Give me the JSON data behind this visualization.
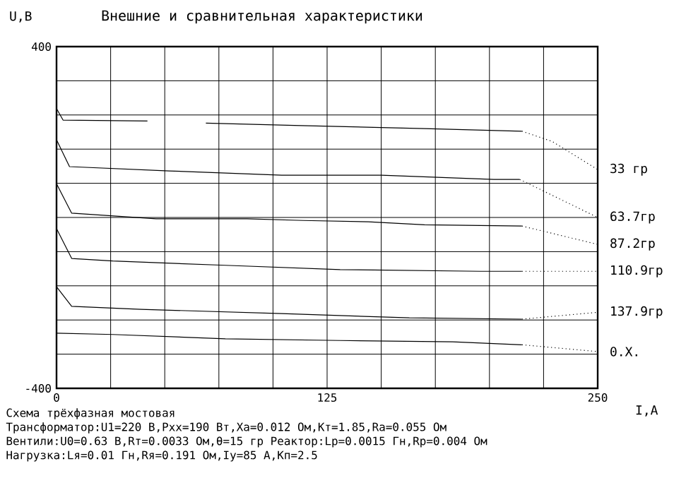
{
  "chart_data": {
    "type": "line",
    "title": "Внешние и сравнительная характеристики",
    "xlabel": "I,А",
    "ylabel": "U,В",
    "xlim": [
      0,
      250
    ],
    "ylim": [
      -400,
      400
    ],
    "xticks": [
      0,
      {
        "value": 25,
        "label": null
      },
      {
        "value": 50,
        "label": null
      },
      {
        "value": 75,
        "label": null
      },
      {
        "value": 100,
        "label": null
      },
      125,
      {
        "value": 150,
        "label": null
      },
      {
        "value": 175,
        "label": null
      },
      {
        "value": 200,
        "label": null
      },
      {
        "value": 225,
        "label": null
      },
      250
    ],
    "yticks": [
      400,
      {
        "value": 320,
        "label": null
      },
      {
        "value": 240,
        "label": null
      },
      {
        "value": 160,
        "label": null
      },
      {
        "value": 80,
        "label": null
      },
      {
        "value": 0,
        "label": null
      },
      {
        "value": -80,
        "label": null
      },
      {
        "value": -160,
        "label": null
      },
      {
        "value": -240,
        "label": null
      },
      {
        "value": -320,
        "label": null
      },
      -400
    ],
    "grid": true,
    "series": [
      {
        "color": "#000000",
        "line_style": "solid",
        "x": [
          0,
          3,
          42,
          55,
          69,
          113,
          170,
          215
        ],
        "values": [
          255,
          228,
          226,
          null,
          221,
          215,
          208,
          202
        ]
      },
      {
        "name": "33  гр",
        "color": "#000000",
        "line_style": "dotted",
        "x": [
          215,
          229,
          250
        ],
        "values": [
          202,
          178,
          112
        ]
      },
      {
        "color": "#000000",
        "line_style": "solid",
        "x": [
          0,
          6,
          52,
          104,
          150,
          202,
          214
        ],
        "values": [
          182,
          119,
          109,
          99,
          99,
          89,
          89
        ]
      },
      {
        "name": "63.7гр",
        "color": "#000000",
        "line_style": "dotted",
        "x": [
          214,
          250
        ],
        "values": [
          89,
          0
        ]
      },
      {
        "color": "#000000",
        "line_style": "solid",
        "x": [
          0,
          7,
          46,
          88,
          114,
          144,
          170,
          215
        ],
        "values": [
          79,
          10,
          -3,
          -3,
          -7,
          -10,
          -17,
          -20
        ]
      },
      {
        "name": "87.2гр",
        "color": "#000000",
        "line_style": "dotted",
        "x": [
          215,
          250
        ],
        "values": [
          -20,
          -63
        ]
      },
      {
        "color": "#000000",
        "line_style": "solid",
        "x": [
          0,
          7,
          26,
          78,
          131,
          196,
          215
        ],
        "values": [
          -26,
          -96,
          -102,
          -112,
          -122,
          -126,
          -126
        ]
      },
      {
        "name": "110.9гр",
        "color": "#000000",
        "line_style": "dotted",
        "x": [
          215,
          250
        ],
        "values": [
          -126,
          -126
        ]
      },
      {
        "color": "#000000",
        "line_style": "solid",
        "x": [
          0,
          7,
          39,
          104,
          163,
          215
        ],
        "values": [
          -162,
          -208,
          -215,
          -225,
          -235,
          -238
        ]
      },
      {
        "name": "137.9гр",
        "color": "#000000",
        "line_style": "dotted",
        "x": [
          215,
          250
        ],
        "values": [
          -238,
          -222
        ]
      },
      {
        "color": "#000000",
        "line_style": "solid",
        "x": [
          0,
          26,
          78,
          131,
          183,
          215
        ],
        "values": [
          -271,
          -274,
          -284,
          -288,
          -291,
          -298
        ]
      },
      {
        "name": "0.Х.",
        "color": "#000000",
        "line_style": "dotted",
        "x": [
          215,
          250
        ],
        "values": [
          -298,
          -314
        ]
      }
    ],
    "annotations": [
      "Схема трёхфазная мостовая",
      "Трансформатор:U1=220 В,Pxx=190 Вт,Xa=0.012 Ом,Кт=1.85,Ra=0.055 Ом",
      "Вентили:U0=0.63 В,Rт=0.0033 Ом,θ=15 гр    Реактор:Lр=0.0015 Гн,Rр=0.004 Ом",
      "Нагрузка:Lя=0.01 Гн,Rя=0.191 Ом,Iу=85 А,Кп=2.5"
    ]
  }
}
